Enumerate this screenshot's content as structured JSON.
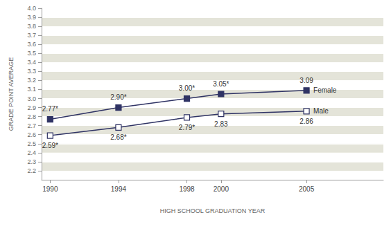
{
  "chart_data": {
    "type": "line",
    "x_label": "HIGH SCHOOL GRADUATION YEAR",
    "y_label": "GRADE POINT AVERAGE",
    "x": [
      1990,
      1994,
      1998,
      2000,
      2005
    ],
    "xlim": [
      1989.5,
      2009.5
    ],
    "xticks": [
      1990,
      1994,
      1998,
      2000,
      2005
    ],
    "ylim": [
      2.1,
      4.0
    ],
    "yticks": [
      2.2,
      2.3,
      2.4,
      2.5,
      2.6,
      2.7,
      2.8,
      2.9,
      {
        "value": 3,
        "label": "3.0"
      },
      3.1,
      3.2,
      3.3,
      3.4,
      3.5,
      3.6,
      3.7,
      3.8,
      3.9,
      {
        "value": 4,
        "label": "4.0"
      }
    ],
    "grid": true,
    "data_labels": true,
    "series": [
      {
        "name": "Female",
        "color": "#2f3364",
        "marker": "square",
        "values": [
          2.77,
          2.9,
          3.0,
          3.05,
          3.09
        ],
        "value_labels": [
          "2.77*",
          "2.90*",
          "3.00*",
          "3.05*",
          "3.09"
        ]
      },
      {
        "name": "Male",
        "color": "#2f3364",
        "marker": "square-open",
        "values": [
          2.59,
          2.68,
          2.79,
          2.83,
          2.86
        ],
        "value_labels": [
          "2.59*",
          "2.68*",
          "2.79*",
          "2.83",
          "2.86"
        ]
      }
    ]
  }
}
